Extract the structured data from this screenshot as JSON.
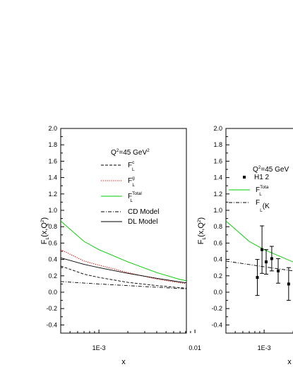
{
  "chart_data": [
    {
      "type": "line",
      "xscale": "log",
      "xlim": [
        0.0004,
        0.01
      ],
      "ylim": [
        -0.5,
        2.0
      ],
      "xlabel": "x",
      "ylabel": "F_L(x,Q^2)",
      "x_tick_labels": [
        "1E-3",
        "0.01"
      ],
      "y_tick_labels": [
        "-0.4",
        "-0.2",
        "0.0",
        "0.2",
        "0.4",
        "0.6",
        "0.8",
        "1.0",
        "1.2",
        "1.4",
        "1.6",
        "1.8",
        "2.0"
      ],
      "annotation": "Q^2=45 GeV^2",
      "legend_position": "top-right",
      "series": [
        {
          "name": "F_L^c",
          "label_main": "F",
          "label_sub": "L",
          "label_sup": "c",
          "style": "dashed",
          "color": "#000000",
          "x": [
            0.0004,
            0.0007,
            0.001,
            0.002,
            0.004,
            0.007,
            0.01
          ],
          "y": [
            0.32,
            0.22,
            0.18,
            0.12,
            0.08,
            0.055,
            0.04
          ]
        },
        {
          "name": "F_L^g",
          "label_main": "F",
          "label_sub": "L",
          "label_sup": "g",
          "style": "dotted",
          "color": "#dd0000",
          "x": [
            0.0004,
            0.0007,
            0.001,
            0.002,
            0.004,
            0.007,
            0.01
          ],
          "y": [
            0.52,
            0.38,
            0.33,
            0.24,
            0.16,
            0.115,
            0.09
          ]
        },
        {
          "name": "F_L^Total",
          "label_main": "F",
          "label_sub": "L",
          "label_sup": "Total",
          "style": "solid",
          "color": "#00cc00",
          "x": [
            0.0004,
            0.0007,
            0.001,
            0.002,
            0.004,
            0.007,
            0.01
          ],
          "y": [
            0.87,
            0.62,
            0.52,
            0.37,
            0.24,
            0.155,
            0.12
          ]
        },
        {
          "name": "CD Model",
          "label_main": "CD Model",
          "style": "dashdot",
          "color": "#000000",
          "x": [
            0.0004,
            0.001,
            0.002,
            0.004,
            0.007,
            0.01
          ],
          "y": [
            0.13,
            0.1,
            0.08,
            0.06,
            0.045,
            0.035
          ]
        },
        {
          "name": "DL Model",
          "label_main": "DL Model",
          "style": "solid",
          "color": "#000000",
          "x": [
            0.0004,
            0.0007,
            0.001,
            0.002,
            0.004,
            0.007,
            0.01
          ],
          "y": [
            0.42,
            0.34,
            0.3,
            0.23,
            0.17,
            0.125,
            0.1
          ]
        }
      ]
    },
    {
      "type": "line",
      "xscale": "log",
      "xlim": [
        0.0004,
        0.01
      ],
      "ylim": [
        -0.5,
        2.0
      ],
      "xlabel": "x",
      "ylabel": "F_L(x,Q^2)",
      "x_tick_labels": [
        "1E-3"
      ],
      "y_tick_labels": [
        "-0.4",
        "-0.2",
        "0.0",
        "0.2",
        "0.4",
        "0.6",
        "0.8",
        "1.0",
        "1.2",
        "1.4",
        "1.6",
        "1.8",
        "2.0"
      ],
      "annotation": "Q^2=45 GeV",
      "legend_position": "top-right",
      "series": [
        {
          "name": "H1 2",
          "label_main": "H1 2",
          "style": "points",
          "color": "#000000",
          "x": [
            0.00085,
            0.00095,
            0.00105,
            0.0012,
            0.0014,
            0.0018
          ],
          "y": [
            0.18,
            0.52,
            0.37,
            0.41,
            0.26,
            0.1
          ],
          "err": [
            0.22,
            0.29,
            0.15,
            0.15,
            0.15,
            0.2
          ]
        },
        {
          "name": "F_L^Total",
          "label_main": "F",
          "label_sub": "L",
          "label_sup": "Tota",
          "style": "solid",
          "color": "#00cc00",
          "x": [
            0.0004,
            0.0007,
            0.001,
            0.002,
            0.004
          ],
          "y": [
            0.87,
            0.62,
            0.52,
            0.37,
            0.24
          ]
        },
        {
          "name": "F_L(K_",
          "label_main": "F",
          "label_sub": "L",
          "label_after": "(K",
          "style": "dashdot",
          "color": "#000000",
          "x": [
            0.0004,
            0.001,
            0.002,
            0.004
          ],
          "y": [
            0.38,
            0.31,
            0.26,
            0.22
          ]
        }
      ]
    }
  ]
}
